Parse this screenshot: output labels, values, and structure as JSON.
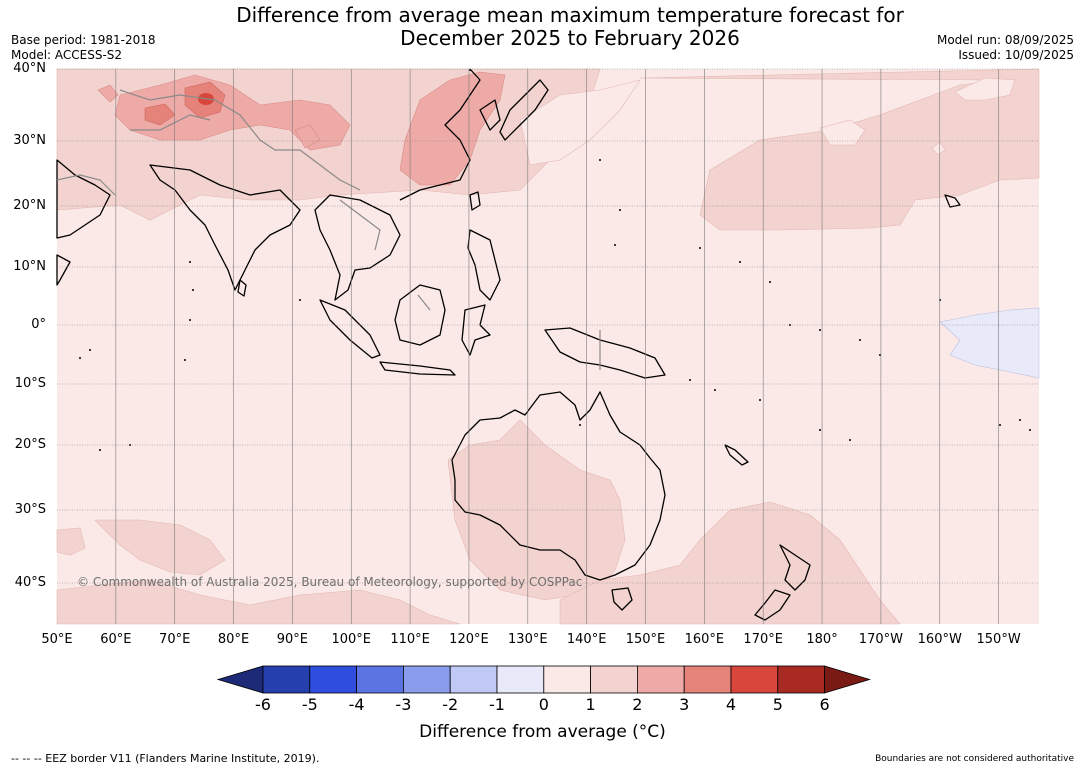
{
  "title_line1": "Difference from average mean maximum temperature forecast for",
  "title_line2": "December 2025 to February 2026",
  "base_period": "Base period: 1981-2018",
  "model": "Model: ACCESS-S2",
  "model_run": "Model run: 08/09/2025",
  "issued": "Issued: 10/09/2025",
  "lat_labels": [
    "40°N",
    "30°N",
    "20°N",
    "10°N",
    "0°",
    "10°S",
    "20°S",
    "30°S",
    "40°S"
  ],
  "lon_labels": [
    "50°E",
    "60°E",
    "70°E",
    "80°E",
    "90°E",
    "100°E",
    "110°E",
    "120°E",
    "130°E",
    "140°E",
    "150°E",
    "160°E",
    "170°E",
    "180°",
    "170°W",
    "160°W",
    "150°W"
  ],
  "credit": "© Commonwealth of Australia 2025, Bureau of Meteorology, supported by COSPPac",
  "colorbar": {
    "ticks": [
      "-6",
      "-5",
      "-4",
      "-3",
      "-2",
      "-1",
      "0",
      "1",
      "2",
      "3",
      "4",
      "5",
      "6"
    ],
    "colors": [
      "#1c2a78",
      "#263fae",
      "#2f4ee0",
      "#5b74e2",
      "#8a9ded",
      "#c0c8f5",
      "#e8eafa",
      "#fbe9e7",
      "#f3d3d0",
      "#edaaa6",
      "#e5827a",
      "#d9473c",
      "#a82a22",
      "#7a1a14"
    ],
    "label": "Difference from average (°C)"
  },
  "map_colors": {
    "base": "#fbe9e7",
    "anom_1_2": "#f3d3d0",
    "anom_2_3": "#edaaa6",
    "anom_3_4": "#e5827a",
    "anom_4_5": "#d9473c",
    "anom_neg": "#e8eafa"
  },
  "footer_left": "--  --  -- EEZ border V11 (Flanders Marine Institute, 2019).",
  "footer_right": "Boundaries are not considered authoritative"
}
